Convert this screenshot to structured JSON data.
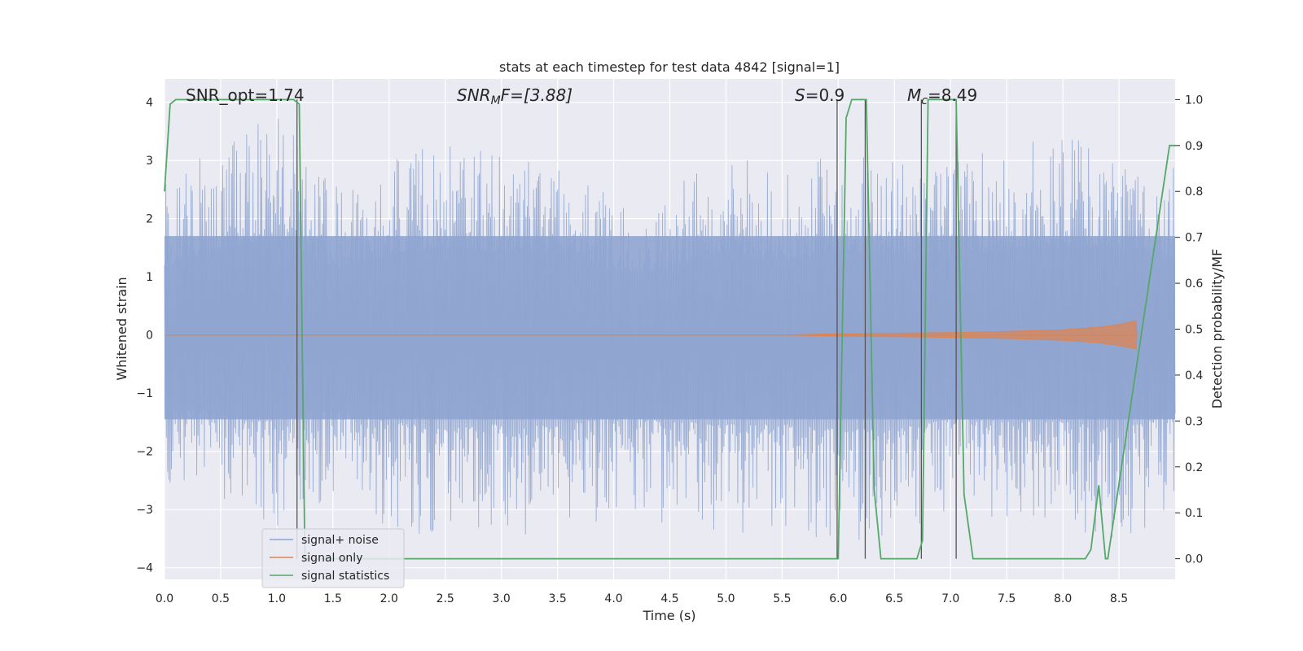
{
  "chart_data": {
    "type": "line",
    "title": "stats at each timestep for test data 4842 [signal=1]",
    "xlabel": "Time (s)",
    "ylabel": "Whitened strain",
    "ylabel_right": "Detection probability/MF",
    "xlim": [
      0.0,
      9.0
    ],
    "ylim": [
      -4.2,
      4.4
    ],
    "ylim_right": [
      -0.045,
      1.045
    ],
    "xticks": [
      "0.0",
      "0.5",
      "1.0",
      "1.5",
      "2.0",
      "2.5",
      "3.0",
      "3.5",
      "4.0",
      "4.5",
      "5.0",
      "5.5",
      "6.0",
      "6.5",
      "7.0",
      "7.5",
      "8.0",
      "8.5"
    ],
    "yticks": [
      "4",
      "3",
      "2",
      "1",
      "0",
      "−1",
      "−2",
      "−3",
      "−4"
    ],
    "yticks_right": [
      "1.0",
      "0.9",
      "0.8",
      "0.7",
      "0.6",
      "0.5",
      "0.4",
      "0.3",
      "0.2",
      "0.1",
      "0.0"
    ],
    "grid": true,
    "legend_position": "lower-left",
    "annotations": {
      "snr_opt": "SNR_opt=1.74",
      "snr_mf_main": "SNR",
      "snr_mf_sub": "M",
      "snr_mf_rest": "F=[3.88]",
      "s_main": "S",
      "s_rest": "=0.9",
      "mc_main": "M",
      "mc_sub": "c",
      "mc_rest": "=8.49"
    },
    "series": [
      {
        "name": "signal+ noise",
        "color": "#8fa5d0",
        "envelope_x": [
          0.0,
          0.5,
          1.0,
          1.5,
          2.0,
          2.5,
          3.0,
          3.5,
          4.0,
          4.5,
          5.0,
          5.5,
          6.0,
          6.5,
          7.0,
          7.5,
          8.0,
          8.5,
          9.0
        ],
        "upper": [
          2.6,
          3.3,
          3.8,
          2.6,
          3.1,
          3.3,
          3.2,
          3.3,
          2.4,
          2.5,
          3.2,
          2.8,
          3.2,
          3.0,
          3.0,
          3.3,
          3.4,
          3.3,
          2.9
        ],
        "lower": [
          -2.7,
          -3.0,
          -3.3,
          -2.8,
          -3.3,
          -3.6,
          -3.4,
          -3.5,
          -3.1,
          -3.3,
          -3.4,
          -3.4,
          -3.6,
          -3.6,
          -3.2,
          -3.3,
          -3.3,
          -3.6,
          -3.0
        ]
      },
      {
        "name": "signal only",
        "color": "#dd8452",
        "x": [
          0.0,
          5.5,
          6.0,
          6.5,
          7.0,
          7.5,
          8.0,
          8.3,
          8.5,
          8.65,
          8.66
        ],
        "amplitude": [
          0.0,
          0.0,
          0.02,
          0.03,
          0.04,
          0.06,
          0.09,
          0.13,
          0.18,
          0.24,
          0.0
        ]
      },
      {
        "name": "signal statistics",
        "color": "#55a868",
        "x": [
          0.0,
          0.05,
          0.1,
          1.15,
          1.2,
          1.25,
          6.0,
          6.07,
          6.12,
          6.25,
          6.32,
          6.38,
          6.7,
          6.75,
          6.8,
          7.05,
          7.12,
          7.2,
          8.2,
          8.25,
          8.32,
          8.38,
          8.4,
          8.95,
          9.0
        ],
        "y": [
          0.8,
          0.99,
          1.0,
          1.0,
          0.99,
          0.0,
          0.0,
          0.96,
          1.0,
          1.0,
          0.15,
          0.0,
          0.0,
          0.04,
          1.0,
          1.0,
          0.14,
          0.0,
          0.0,
          0.02,
          0.16,
          0.0,
          0.0,
          0.9,
          0.9
        ]
      }
    ],
    "vlines_x": [
      1.18,
      5.99,
      6.24,
      6.74,
      7.05
    ]
  }
}
